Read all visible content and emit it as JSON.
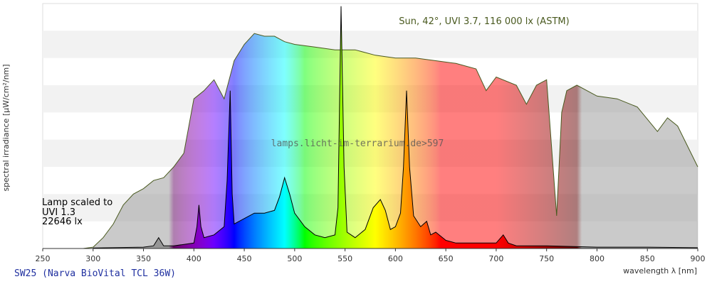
{
  "chart_data": {
    "type": "spectrum",
    "xlabel": "wavelength λ [nm]",
    "ylabel": "spectral irradiance [µW/cm²/nm]",
    "watermark": "lamps.licht-im-terrarium.de>597",
    "footer": "SW25 (Narva BioVital TCL 36W)",
    "xlim": [
      250,
      900
    ],
    "xticks": [
      250,
      300,
      350,
      400,
      450,
      500,
      550,
      600,
      650,
      700,
      750,
      800,
      850,
      900
    ],
    "ylim": [
      0,
      9
    ],
    "series": [
      {
        "name": "Sun, 42°, UVI 3.7, 116 000 lx (ASTM)",
        "color": "#4a5a20",
        "x": [
          250,
          290,
          300,
          310,
          320,
          330,
          340,
          350,
          360,
          370,
          380,
          390,
          400,
          410,
          420,
          430,
          440,
          450,
          460,
          470,
          480,
          490,
          500,
          520,
          540,
          560,
          580,
          600,
          620,
          640,
          660,
          680,
          690,
          700,
          720,
          730,
          740,
          750,
          760,
          765,
          770,
          780,
          800,
          820,
          840,
          860,
          870,
          880,
          900
        ],
        "values": [
          0,
          0,
          0.05,
          0.4,
          0.9,
          1.6,
          2.0,
          2.2,
          2.5,
          2.6,
          3.0,
          3.5,
          5.5,
          5.8,
          6.2,
          5.5,
          6.9,
          7.5,
          7.9,
          7.8,
          7.8,
          7.6,
          7.5,
          7.4,
          7.3,
          7.3,
          7.1,
          7.0,
          7.0,
          6.9,
          6.8,
          6.6,
          5.8,
          6.3,
          6.0,
          5.3,
          6.0,
          6.2,
          1.2,
          5.0,
          5.8,
          6.0,
          5.6,
          5.5,
          5.2,
          4.3,
          4.8,
          4.5,
          3.0
        ]
      },
      {
        "name": "Lamp scaled to",
        "color": "#000000",
        "x": [
          300,
          350,
          360,
          365,
          370,
          380,
          400,
          403,
          405,
          407,
          410,
          420,
          430,
          433,
          436,
          438,
          440,
          450,
          460,
          470,
          480,
          485,
          490,
          495,
          500,
          510,
          520,
          530,
          540,
          543,
          546,
          549,
          552,
          560,
          570,
          578,
          585,
          590,
          595,
          600,
          605,
          608,
          611,
          614,
          618,
          625,
          631,
          635,
          640,
          650,
          660,
          680,
          700,
          707,
          712,
          720,
          750,
          800,
          850,
          900
        ],
        "values": [
          0.02,
          0.05,
          0.1,
          0.4,
          0.1,
          0.1,
          0.2,
          0.8,
          1.6,
          0.8,
          0.4,
          0.5,
          0.8,
          2.5,
          5.8,
          2.0,
          0.9,
          1.1,
          1.3,
          1.3,
          1.4,
          1.9,
          2.6,
          2.0,
          1.3,
          0.8,
          0.5,
          0.4,
          0.5,
          1.5,
          8.9,
          3.0,
          0.6,
          0.4,
          0.7,
          1.5,
          1.8,
          1.4,
          0.7,
          0.8,
          1.3,
          3.0,
          5.8,
          3.0,
          1.2,
          0.8,
          1.0,
          0.5,
          0.6,
          0.3,
          0.2,
          0.2,
          0.2,
          0.5,
          0.2,
          0.1,
          0.1,
          0.05,
          0.05,
          0.03
        ]
      }
    ],
    "annotations": [
      "UVI 1.3",
      "22646 lx"
    ]
  }
}
